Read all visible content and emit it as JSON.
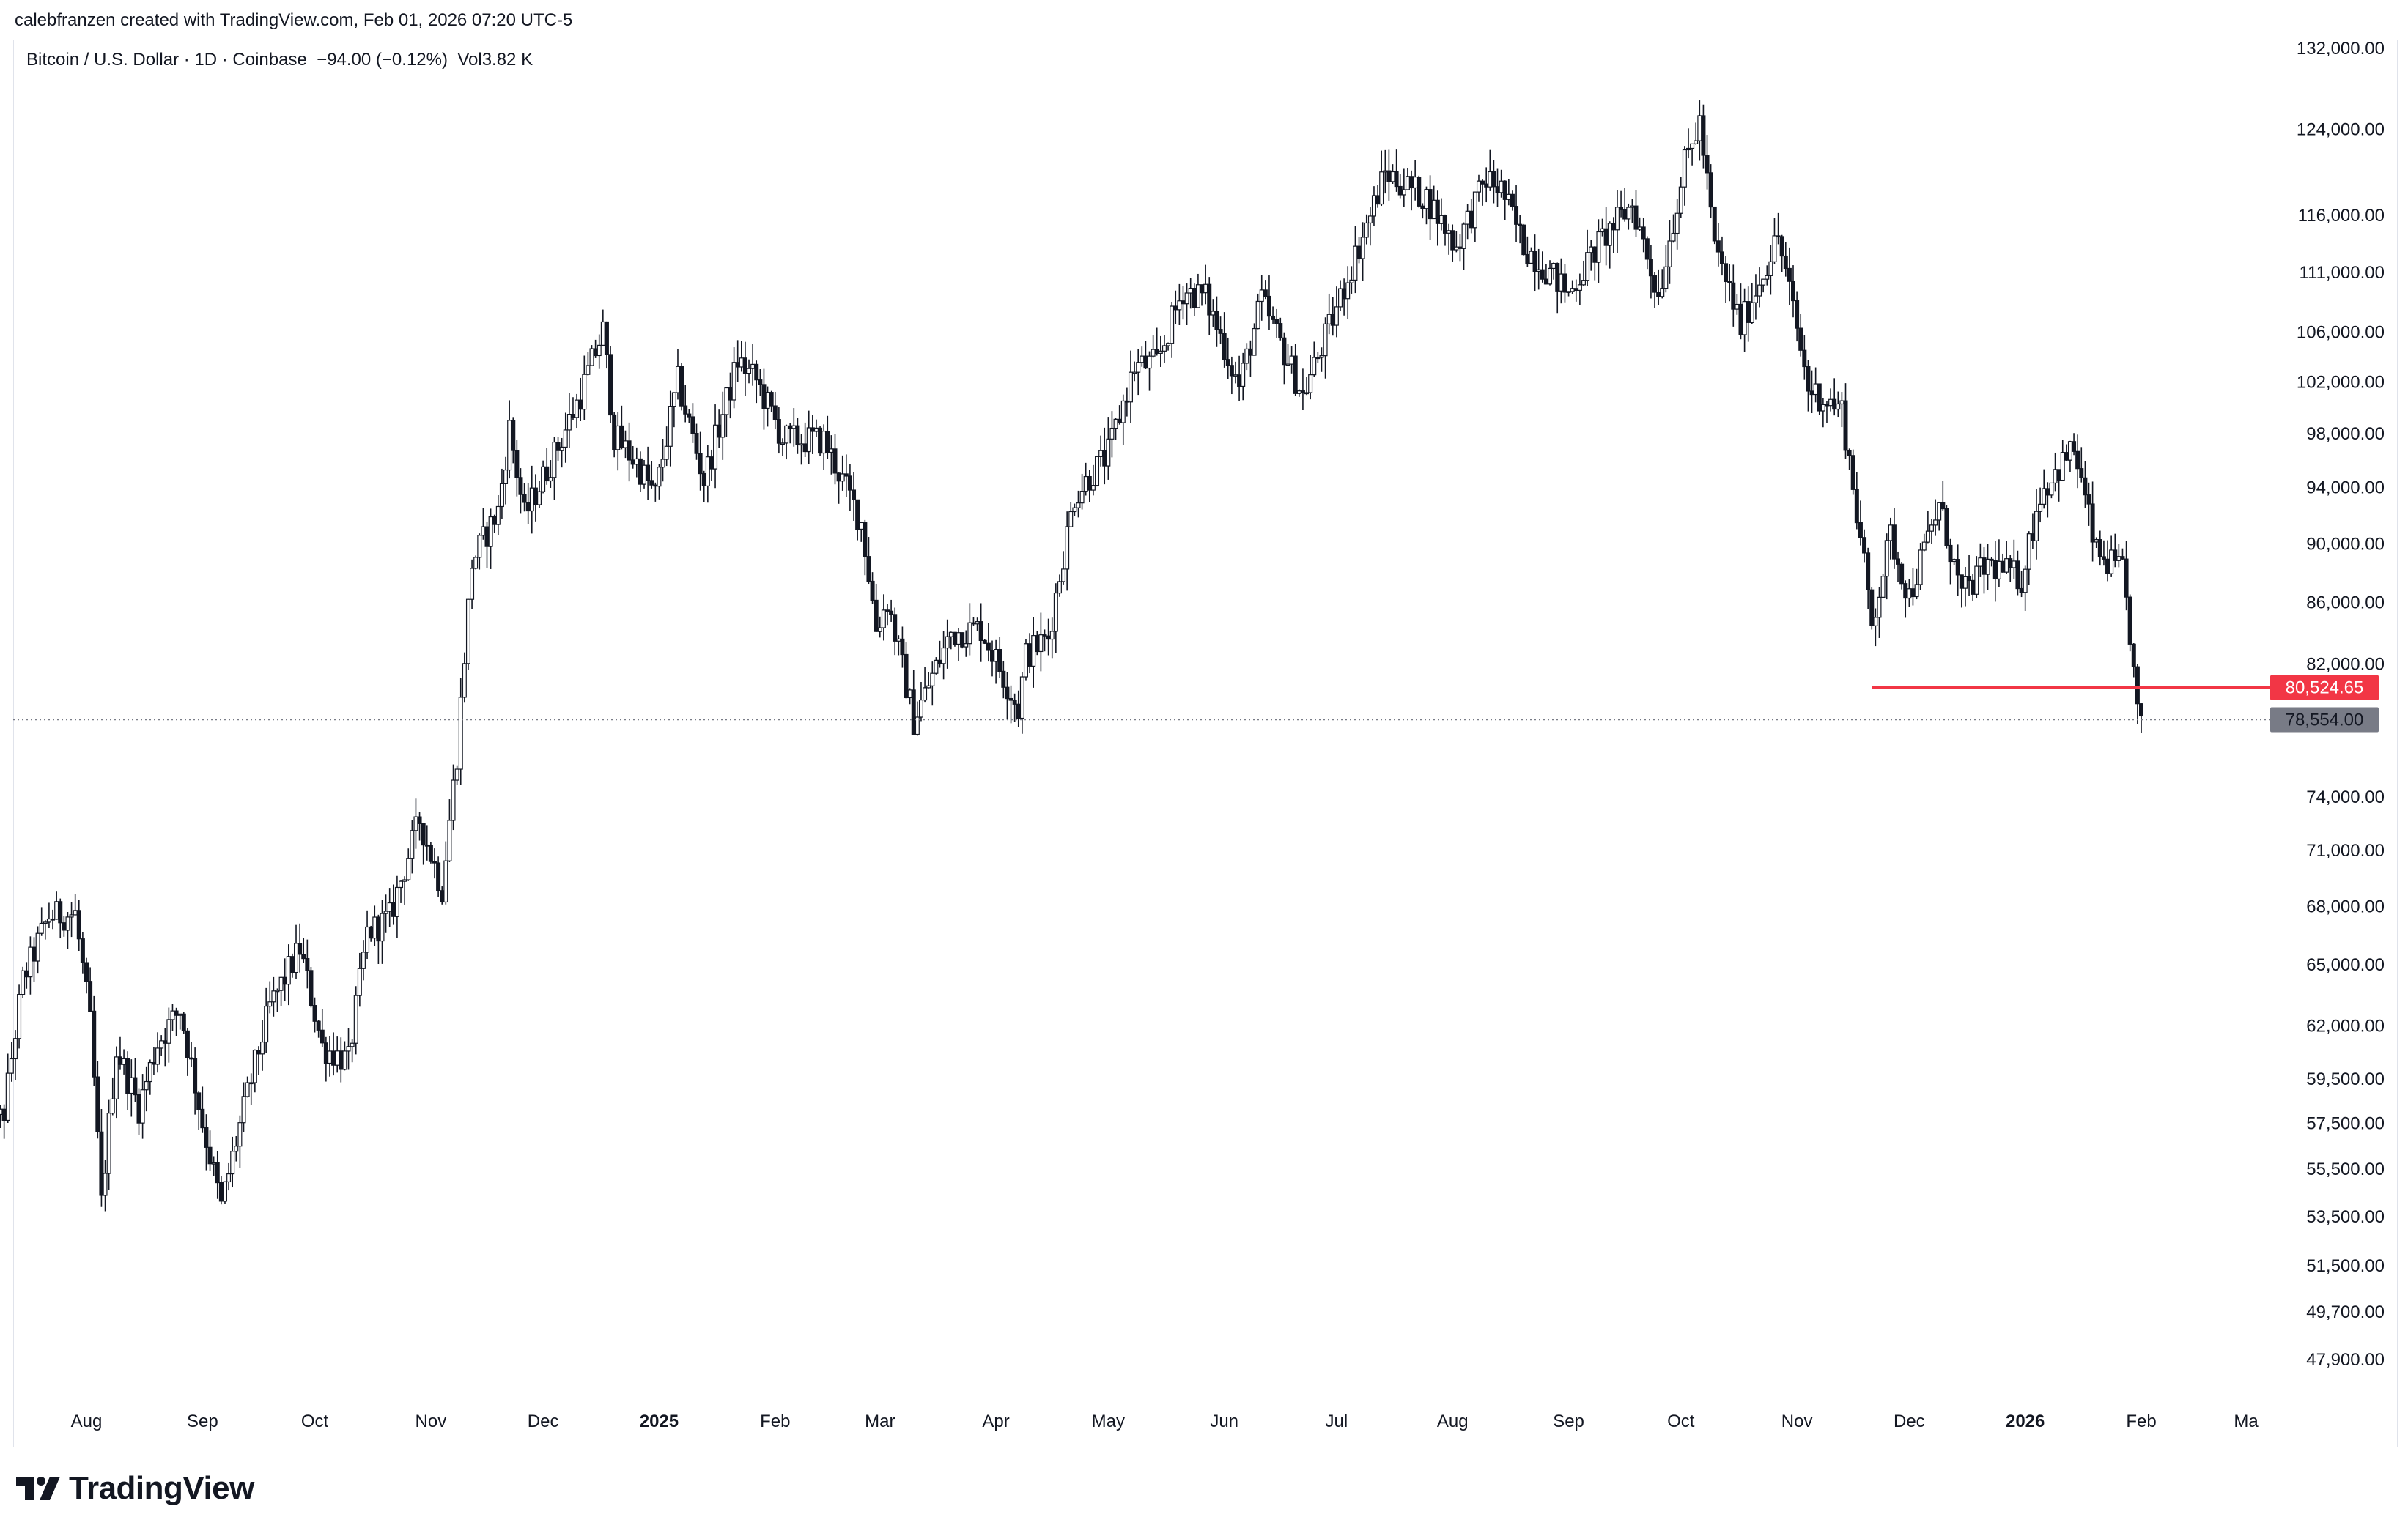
{
  "attribution": "calebfranzen created with TradingView.com, Feb 01, 2026 07:20 UTC-5",
  "symbol": {
    "name": "Bitcoin / U.S. Dollar",
    "interval": "1D",
    "exchange": "Coinbase",
    "change": "−94.00 (−0.12%)",
    "volume_label": "Vol",
    "volume": "3.82 K"
  },
  "brand": {
    "name": "TradingView",
    "icon": "tradingview-logo-icon"
  },
  "colors": {
    "candles": "#131722",
    "support_line": "#f23645",
    "last_price": "#787b86",
    "grid": "#e0e3eb"
  },
  "chart_data": {
    "type": "candlestick",
    "scale": "log",
    "interval": "1D",
    "y_ticks": [
      "132,000.00",
      "124,000.00",
      "116,000.00",
      "111,000.00",
      "106,000.00",
      "102,000.00",
      "98,000.00",
      "94,000.00",
      "90,000.00",
      "86,000.00",
      "82,000.00",
      "74,000.00",
      "71,000.00",
      "68,000.00",
      "65,000.00",
      "62,000.00",
      "59,500.00",
      "57,500.00",
      "55,500.00",
      "53,500.00",
      "51,500.00",
      "49,700.00",
      "47,900.00"
    ],
    "x_ticks": [
      {
        "label": "Aug",
        "date": "2024-08-01"
      },
      {
        "label": "Sep",
        "date": "2024-09-01"
      },
      {
        "label": "Oct",
        "date": "2024-10-01"
      },
      {
        "label": "Nov",
        "date": "2024-11-01"
      },
      {
        "label": "Dec",
        "date": "2024-12-01"
      },
      {
        "label": "2025",
        "date": "2025-01-01",
        "bold": true
      },
      {
        "label": "Feb",
        "date": "2025-02-01"
      },
      {
        "label": "Mar",
        "date": "2025-03-01"
      },
      {
        "label": "Apr",
        "date": "2025-04-01"
      },
      {
        "label": "May",
        "date": "2025-05-01"
      },
      {
        "label": "Jun",
        "date": "2025-06-01"
      },
      {
        "label": "Jul",
        "date": "2025-07-01"
      },
      {
        "label": "Aug",
        "date": "2025-08-01"
      },
      {
        "label": "Sep",
        "date": "2025-09-01"
      },
      {
        "label": "Oct",
        "date": "2025-10-01"
      },
      {
        "label": "Nov",
        "date": "2025-11-01"
      },
      {
        "label": "Dec",
        "date": "2025-12-01"
      },
      {
        "label": "2026",
        "date": "2026-01-01",
        "bold": true
      },
      {
        "label": "Feb",
        "date": "2026-02-01"
      },
      {
        "label": "Ma",
        "date": "2026-03-01"
      }
    ],
    "price_markers": [
      {
        "label": "80,524.65",
        "value": 80524.65,
        "style": "support-line",
        "start_date": "2025-11-21"
      },
      {
        "label": "78,554.00",
        "value": 78554,
        "style": "last-price"
      }
    ],
    "price_path": [
      [
        "2024-07-05",
        56600
      ],
      [
        "2024-07-10",
        58000
      ],
      [
        "2024-07-15",
        64200
      ],
      [
        "2024-07-22",
        67500
      ],
      [
        "2024-07-29",
        67600
      ],
      [
        "2024-08-02",
        62100
      ],
      [
        "2024-08-05",
        54000
      ],
      [
        "2024-08-09",
        60900
      ],
      [
        "2024-08-15",
        58200
      ],
      [
        "2024-08-20",
        61200
      ],
      [
        "2024-08-26",
        62800
      ],
      [
        "2024-09-01",
        57500
      ],
      [
        "2024-09-06",
        53900
      ],
      [
        "2024-09-12",
        58100
      ],
      [
        "2024-09-19",
        62900
      ],
      [
        "2024-09-27",
        65800
      ],
      [
        "2024-10-03",
        61000
      ],
      [
        "2024-10-10",
        60300
      ],
      [
        "2024-10-15",
        66600
      ],
      [
        "2024-10-21",
        67400
      ],
      [
        "2024-10-29",
        72700
      ],
      [
        "2024-11-04",
        68900
      ],
      [
        "2024-11-08",
        76500
      ],
      [
        "2024-11-12",
        88700
      ],
      [
        "2024-11-19",
        92300
      ],
      [
        "2024-11-22",
        98400
      ],
      [
        "2024-11-26",
        91900
      ],
      [
        "2024-12-05",
        97000
      ],
      [
        "2024-12-11",
        101000
      ],
      [
        "2024-12-17",
        106100
      ],
      [
        "2024-12-20",
        97800
      ],
      [
        "2024-12-26",
        95800
      ],
      [
        "2024-12-31",
        93400
      ],
      [
        "2025-01-06",
        102000
      ],
      [
        "2025-01-13",
        94500
      ],
      [
        "2025-01-20",
        101500
      ],
      [
        "2025-01-22",
        103700
      ],
      [
        "2025-01-27",
        102100
      ],
      [
        "2025-02-03",
        97600
      ],
      [
        "2025-02-14",
        97500
      ],
      [
        "2025-02-24",
        91500
      ],
      [
        "2025-02-28",
        84300
      ],
      [
        "2025-03-03",
        86100
      ],
      [
        "2025-03-10",
        78500
      ],
      [
        "2025-03-20",
        84000
      ],
      [
        "2025-03-28",
        84300
      ],
      [
        "2025-04-07",
        79200
      ],
      [
        "2025-04-09",
        82600
      ],
      [
        "2025-04-15",
        83700
      ],
      [
        "2025-04-22",
        93400
      ],
      [
        "2025-05-01",
        96500
      ],
      [
        "2025-05-08",
        103200
      ],
      [
        "2025-05-14",
        103500
      ],
      [
        "2025-05-21",
        109500
      ],
      [
        "2025-05-27",
        108900
      ],
      [
        "2025-06-05",
        101600
      ],
      [
        "2025-06-11",
        108600
      ],
      [
        "2025-06-22",
        100900
      ],
      [
        "2025-06-30",
        107100
      ],
      [
        "2025-07-10",
        116000
      ],
      [
        "2025-07-14",
        119900
      ],
      [
        "2025-07-25",
        117600
      ],
      [
        "2025-08-02",
        113300
      ],
      [
        "2025-08-10",
        119300
      ],
      [
        "2025-08-14",
        118400
      ],
      [
        "2025-08-20",
        113400
      ],
      [
        "2025-09-01",
        109200
      ],
      [
        "2025-09-10",
        113900
      ],
      [
        "2025-09-18",
        117000
      ],
      [
        "2025-09-25",
        109000
      ],
      [
        "2025-10-02",
        120600
      ],
      [
        "2025-10-06",
        124700
      ],
      [
        "2025-10-10",
        113200
      ],
      [
        "2025-10-17",
        106500
      ],
      [
        "2025-10-27",
        114100
      ],
      [
        "2025-11-04",
        101500
      ],
      [
        "2025-11-13",
        99800
      ],
      [
        "2025-11-21",
        84600
      ],
      [
        "2025-11-26",
        90500
      ],
      [
        "2025-12-01",
        86400
      ],
      [
        "2025-12-09",
        92700
      ],
      [
        "2025-12-15",
        86400
      ],
      [
        "2025-12-22",
        88600
      ],
      [
        "2025-12-31",
        87600
      ],
      [
        "2026-01-05",
        93600
      ],
      [
        "2026-01-14",
        96900
      ],
      [
        "2026-01-20",
        89300
      ],
      [
        "2026-01-27",
        88000
      ],
      [
        "2026-01-29",
        84000
      ],
      [
        "2026-01-31",
        78800
      ],
      [
        "2026-02-01",
        78554
      ]
    ]
  }
}
